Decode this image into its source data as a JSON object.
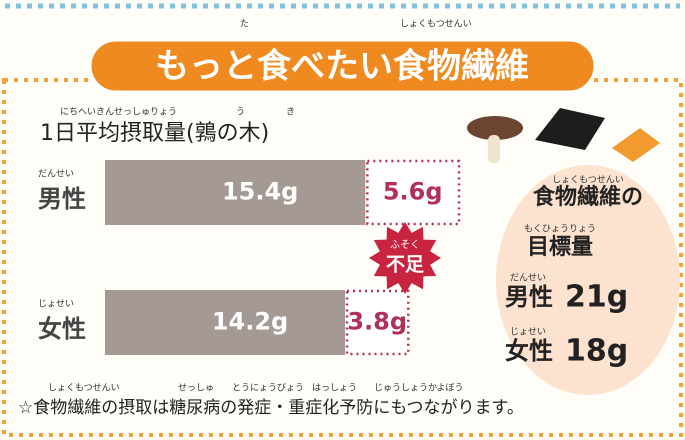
{
  "header": {
    "title": "もっと食べたい食物繊維",
    "ruby": [
      "た",
      "しょくもつせんい"
    ]
  },
  "chart_data": {
    "type": "bar",
    "orientation": "horizontal",
    "stacked": true,
    "title": "1日平均摂取量(鶉の木)",
    "title_ruby": [
      "にちへいきんせっしゅりょう",
      "う",
      "き"
    ],
    "categories": [
      "男性",
      "女性"
    ],
    "category_ruby": [
      "だんせい",
      "じょせい"
    ],
    "series": [
      {
        "color": "#a59a93",
        "values": [
          15.4,
          14.2
        ],
        "value_labels": [
          "15.4g",
          "14.2g"
        ]
      },
      {
        "color": "#b0305a",
        "values": [
          5.6,
          3.8
        ],
        "value_labels": [
          "5.6g",
          "3.8g"
        ]
      }
    ],
    "badge": {
      "text": "不足",
      "ruby": "ふそく"
    }
  },
  "goal": {
    "title": "食物繊維の",
    "title_ruby": "しょくもつせんい",
    "subtitle": "目標量",
    "subtitle_ruby": "もくひょうりょう",
    "items": [
      {
        "label": "男性",
        "ruby": "だんせい",
        "amount": "21g"
      },
      {
        "label": "女性",
        "ruby": "じょせい",
        "amount": "18g"
      }
    ]
  },
  "footnote": {
    "text": "☆食物繊維の摂取は糖尿病の発症・重症化予防にもつながります。",
    "ruby": [
      "しょくもつせんい",
      "せっしゅ",
      "とうにょうびょう",
      "はっしょう",
      "じゅうしょうかよぼう"
    ]
  }
}
